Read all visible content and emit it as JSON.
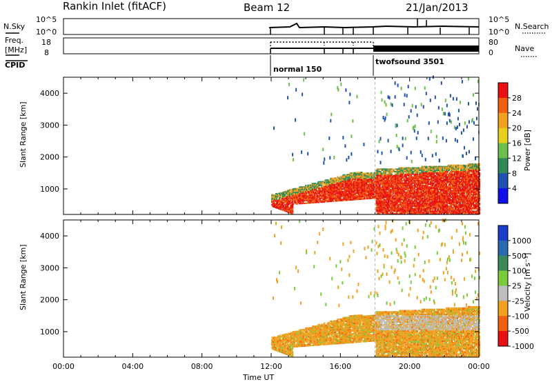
{
  "header": {
    "station": "Rankin Inlet (fitACF)",
    "beam": "Beam 12",
    "date": "21/Jan/2013"
  },
  "strips": {
    "nsky": {
      "label": "N.Sky",
      "left_ticks": [
        "10^5",
        "10^0"
      ],
      "right_ticks": [
        "10^5",
        "10^0"
      ],
      "right_label": "N.Search"
    },
    "freq": {
      "label_line1": "Freq.",
      "label_line2": "[MHz]",
      "left_ticks": [
        "18",
        "8"
      ],
      "right_ticks": [
        "80",
        "0"
      ],
      "right_label": "Nave"
    },
    "cpid": {
      "label": "CPID",
      "modes": [
        {
          "name": "normal 150",
          "start_hour": 12
        },
        {
          "name": "twofsound 3501",
          "start_hour": 18
        }
      ]
    }
  },
  "x_axis": {
    "label": "Time UT",
    "ticks": [
      "00:00",
      "04:00",
      "08:00",
      "12:00",
      "16:00",
      "20:00",
      "00:00"
    ]
  },
  "chart_data": [
    {
      "type": "heatmap",
      "title": "",
      "xlabel": "Time UT",
      "ylabel": "Slant Range [km]",
      "x_range_hours": [
        0,
        24
      ],
      "yticks": [
        1000,
        2000,
        3000,
        4000
      ],
      "ylim": [
        200,
        4500
      ],
      "colorbar": {
        "label": "Power [dB]",
        "ticks": [
          "4",
          "8",
          "12",
          "16",
          "20",
          "24",
          "28"
        ]
      },
      "note_values": [
        {
          "t_start": 12.0,
          "t_end": 18.0,
          "range_km": [
            200,
            1600
          ],
          "power_db": 24
        },
        {
          "t_start": 18.0,
          "t_end": 24.0,
          "range_km": [
            200,
            1800
          ],
          "power_db": 26
        },
        {
          "t_start": 18.0,
          "t_end": 24.0,
          "range_km": [
            1800,
            4500
          ],
          "power_db": 8
        }
      ]
    },
    {
      "type": "heatmap",
      "title": "",
      "xlabel": "Time UT",
      "ylabel": "Slant Range [km]",
      "x_range_hours": [
        0,
        24
      ],
      "yticks": [
        1000,
        2000,
        3000,
        4000
      ],
      "ylim": [
        200,
        4500
      ],
      "colorbar": {
        "label": "Velocity [m s⁻¹]",
        "ticks": [
          "1000",
          "500",
          "100",
          "25",
          "-25",
          "-100",
          "-500",
          "-1000"
        ]
      },
      "note_values": [
        {
          "t_start": 12.0,
          "t_end": 24.0,
          "range_km": [
            600,
            1800
          ],
          "velocity_ms": -300
        },
        {
          "t_start": 18.0,
          "t_end": 24.0,
          "range_km": [
            1000,
            1500
          ],
          "velocity_ms": 0
        }
      ]
    }
  ],
  "colors": {
    "power_scale": [
      "#1010e8",
      "#2050b0",
      "#2e8b57",
      "#6cbf4a",
      "#e8d020",
      "#f2a020",
      "#f06010",
      "#e81010"
    ],
    "velocity_scale": [
      "#1a3ec8",
      "#2a6ab0",
      "#3a8a5a",
      "#7acb3a",
      "#bdbdbd",
      "#f2a020",
      "#f06010",
      "#e81010"
    ]
  }
}
